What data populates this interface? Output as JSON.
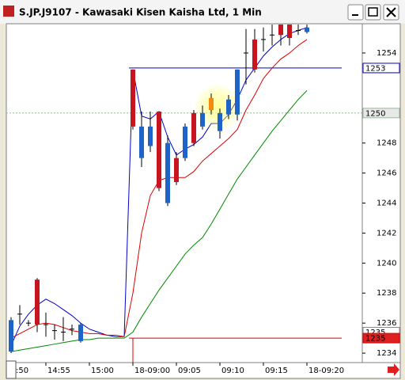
{
  "chart_data": {
    "type": "candlestick",
    "title": "S.JP.J9107 - Kawasaki Kisen Kaisha Ltd, 1 Min",
    "xlabel_left": ":50",
    "categories": [
      null,
      null,
      null,
      null,
      "14:55",
      null,
      null,
      null,
      null,
      "15:00",
      null,
      null,
      null,
      null,
      "18-09:00",
      null,
      null,
      null,
      null,
      "09:05",
      null,
      null,
      null,
      null,
      "09:10",
      null,
      null,
      null,
      null,
      "09:15",
      null,
      null,
      null,
      null,
      "18-09:20"
    ],
    "open": [
      1234.1,
      1236.6,
      1236.0,
      1238.9,
      1235.9,
      1235.5,
      1235.4,
      1235.6,
      1234.8,
      null,
      null,
      null,
      null,
      null,
      1252.9,
      1247.0,
      1247.8,
      1250.1,
      1244.0,
      1247.0,
      1247.0,
      1250.0,
      1249.1,
      1251.0,
      1248.8,
      1249.9,
      1249.9,
      1254.0,
      1254.9,
      1254.9,
      1255.2,
      1255.9,
      1255.9,
      1255.5,
      1255.4
    ],
    "high": [
      1236.4,
      1237.2,
      1236.2,
      1239.0,
      1236.7,
      1235.9,
      1236.4,
      1235.9,
      1236.0,
      null,
      null,
      null,
      null,
      null,
      1252.9,
      1250.1,
      1250.1,
      1250.1,
      1248.5,
      1247.4,
      1249.3,
      1250.2,
      1250.5,
      1251.3,
      1250.3,
      1251.2,
      1252.9,
      1255.6,
      1255.6,
      1255.7,
      1255.9,
      1255.9,
      1255.9,
      1255.9,
      1255.9
    ],
    "low": [
      1234.0,
      1235.9,
      1235.8,
      1235.4,
      1235.1,
      1234.9,
      1234.8,
      1235.2,
      1234.7,
      null,
      null,
      null,
      null,
      null,
      1248.9,
      1246.4,
      1247.4,
      1244.8,
      1243.8,
      1245.2,
      1246.8,
      1247.8,
      1248.9,
      1249.9,
      1248.3,
      1249.6,
      1249.5,
      1251.9,
      1252.7,
      1254.1,
      1254.5,
      1254.5,
      1254.5,
      1255.2,
      1255.3
    ],
    "close": [
      1236.2,
      1236.6,
      1236.0,
      1235.9,
      1235.9,
      1235.5,
      1235.4,
      1235.6,
      1235.9,
      null,
      null,
      null,
      null,
      null,
      1249.1,
      1249.1,
      1249.1,
      1245.0,
      1248.0,
      1245.4,
      1249.1,
      1248.0,
      1250.0,
      1250.2,
      1250.0,
      1250.9,
      1252.9,
      1254.0,
      1252.9,
      1254.9,
      1255.2,
      1255.2,
      1255.0,
      1255.5,
      1255.7
    ],
    "up_color": "#1e63c8",
    "down_color": "#c8141e",
    "flat_color": "#000000",
    "highlight": 23,
    "highlight_color": "#f08a10",
    "series": [
      {
        "color": "#0000cc",
        "values": [
          1234.5,
          1235.8,
          1236.6,
          1237.2,
          1237.6,
          1237.3,
          1236.9,
          1236.5,
          1236.0,
          1235.6,
          1235.4,
          1235.2,
          1235.1,
          1235.1,
          1252.9,
          1249.8,
          1249.6,
          1250.1,
          1248.4,
          1247.2,
          1247.6,
          1247.9,
          1248.4,
          1249.3,
          1249.3,
          1249.9,
          1250.9,
          1252.2,
          1253.0,
          1253.8,
          1254.4,
          1254.9,
          1255.3,
          1255.5,
          1255.7
        ]
      },
      {
        "color": "#dd0000",
        "values": [
          1235.0,
          1235.3,
          1235.6,
          1235.9,
          1236.0,
          1235.9,
          1235.7,
          1235.5,
          1235.4,
          1235.3,
          1235.3,
          1235.2,
          1235.2,
          1235.1,
          1238.0,
          1242.0,
          1244.5,
          1245.5,
          1245.7,
          1245.7,
          1245.7,
          1246.1,
          1246.8,
          1247.3,
          1247.8,
          1248.3,
          1248.9,
          1250.2,
          1251.2,
          1252.3,
          1253.0,
          1253.6,
          1254.0,
          1254.5,
          1254.9
        ]
      },
      {
        "color": "#008800",
        "values": [
          1234.1,
          1234.2,
          1234.3,
          1234.4,
          1234.5,
          1234.6,
          1234.7,
          1234.8,
          1234.9,
          1234.9,
          1235.0,
          1235.0,
          1235.0,
          1235.0,
          1235.4,
          1236.4,
          1237.3,
          1238.2,
          1239.0,
          1239.8,
          1240.6,
          1241.2,
          1241.7,
          1242.6,
          1243.6,
          1244.6,
          1245.6,
          1246.4,
          1247.2,
          1248.0,
          1248.8,
          1249.5,
          1250.2,
          1250.9,
          1251.5
        ]
      }
    ],
    "price_levels": [
      {
        "value": 1253,
        "color": "#0000cc",
        "span": "session",
        "box_fill": "#ffffff",
        "text_color": "#0000cc"
      },
      {
        "value": 1250,
        "color": "#9ab89a",
        "span": "full",
        "box_fill": "#e8e8e8",
        "text_color": "#000000"
      },
      {
        "value": {
          "value": 1235.4,
          "label": "1235"
        },
        "color": "#888888",
        "span": "none",
        "box_fill": "#ffffff",
        "text_color": "#000000"
      },
      {
        "value": 1235,
        "color": "#dd0000",
        "span": "session",
        "box_fill": "#dd2020",
        "text_color": "#ffffff"
      }
    ],
    "session_start": 14,
    "ylim": [
      1233.37,
      1255.95
    ],
    "yticks": [
      1234,
      1236,
      1238,
      1240,
      1242,
      1244,
      1246,
      1248,
      1254
    ]
  }
}
